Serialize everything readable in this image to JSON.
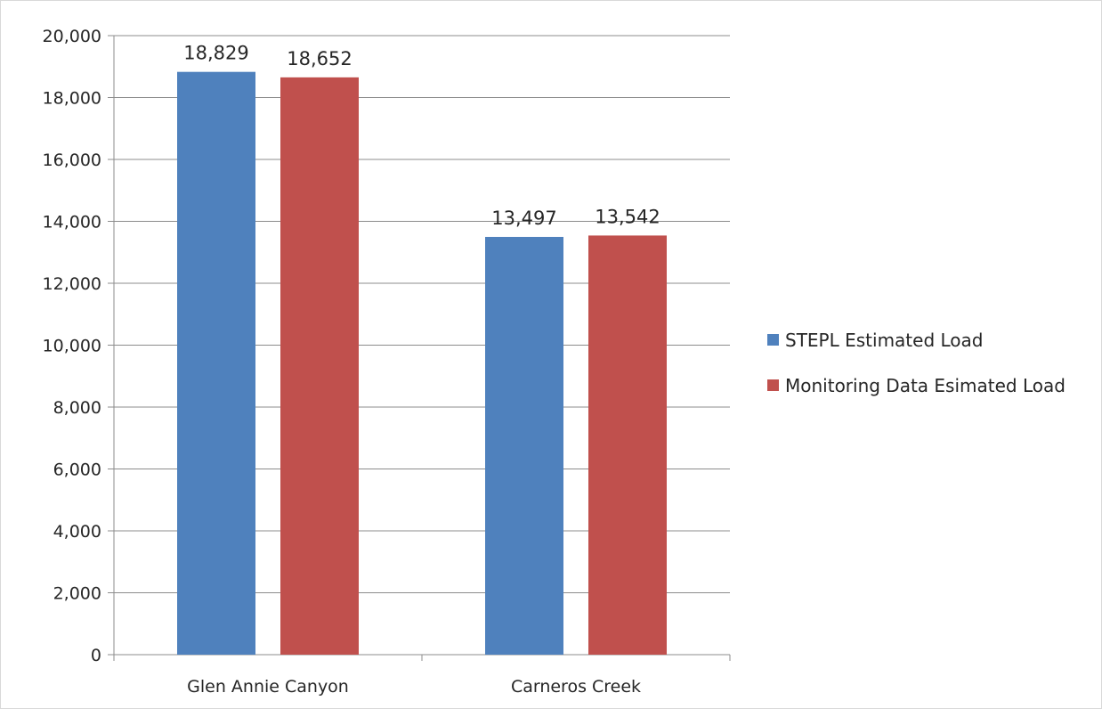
{
  "chart_data": {
    "type": "bar",
    "title": "",
    "xlabel": "",
    "ylabel": "",
    "categories": [
      "Glen Annie Canyon",
      "Carneros Creek"
    ],
    "series": [
      {
        "name": "STEPL Estimated Load",
        "values": [
          18829,
          13497
        ],
        "color": "#4f81bd"
      },
      {
        "name": "Monitoring Data Esimated Load",
        "values": [
          18652,
          13542
        ],
        "color": "#c0504d"
      }
    ],
    "data_labels": [
      [
        "18,829",
        "13,497"
      ],
      [
        "18,652",
        "13,542"
      ]
    ],
    "ylim": [
      0,
      20000
    ],
    "yticks": [
      0,
      2000,
      4000,
      6000,
      8000,
      10000,
      12000,
      14000,
      16000,
      18000,
      20000
    ],
    "ytick_labels": [
      "0",
      "2,000",
      "4,000",
      "6,000",
      "8,000",
      "10,000",
      "12,000",
      "14,000",
      "16,000",
      "18,000",
      "20,000"
    ],
    "grid": true,
    "legend_position": "right",
    "colors": {
      "gridline": "#8c8c8c",
      "axis": "#8c8c8c",
      "text": "#262626"
    }
  }
}
